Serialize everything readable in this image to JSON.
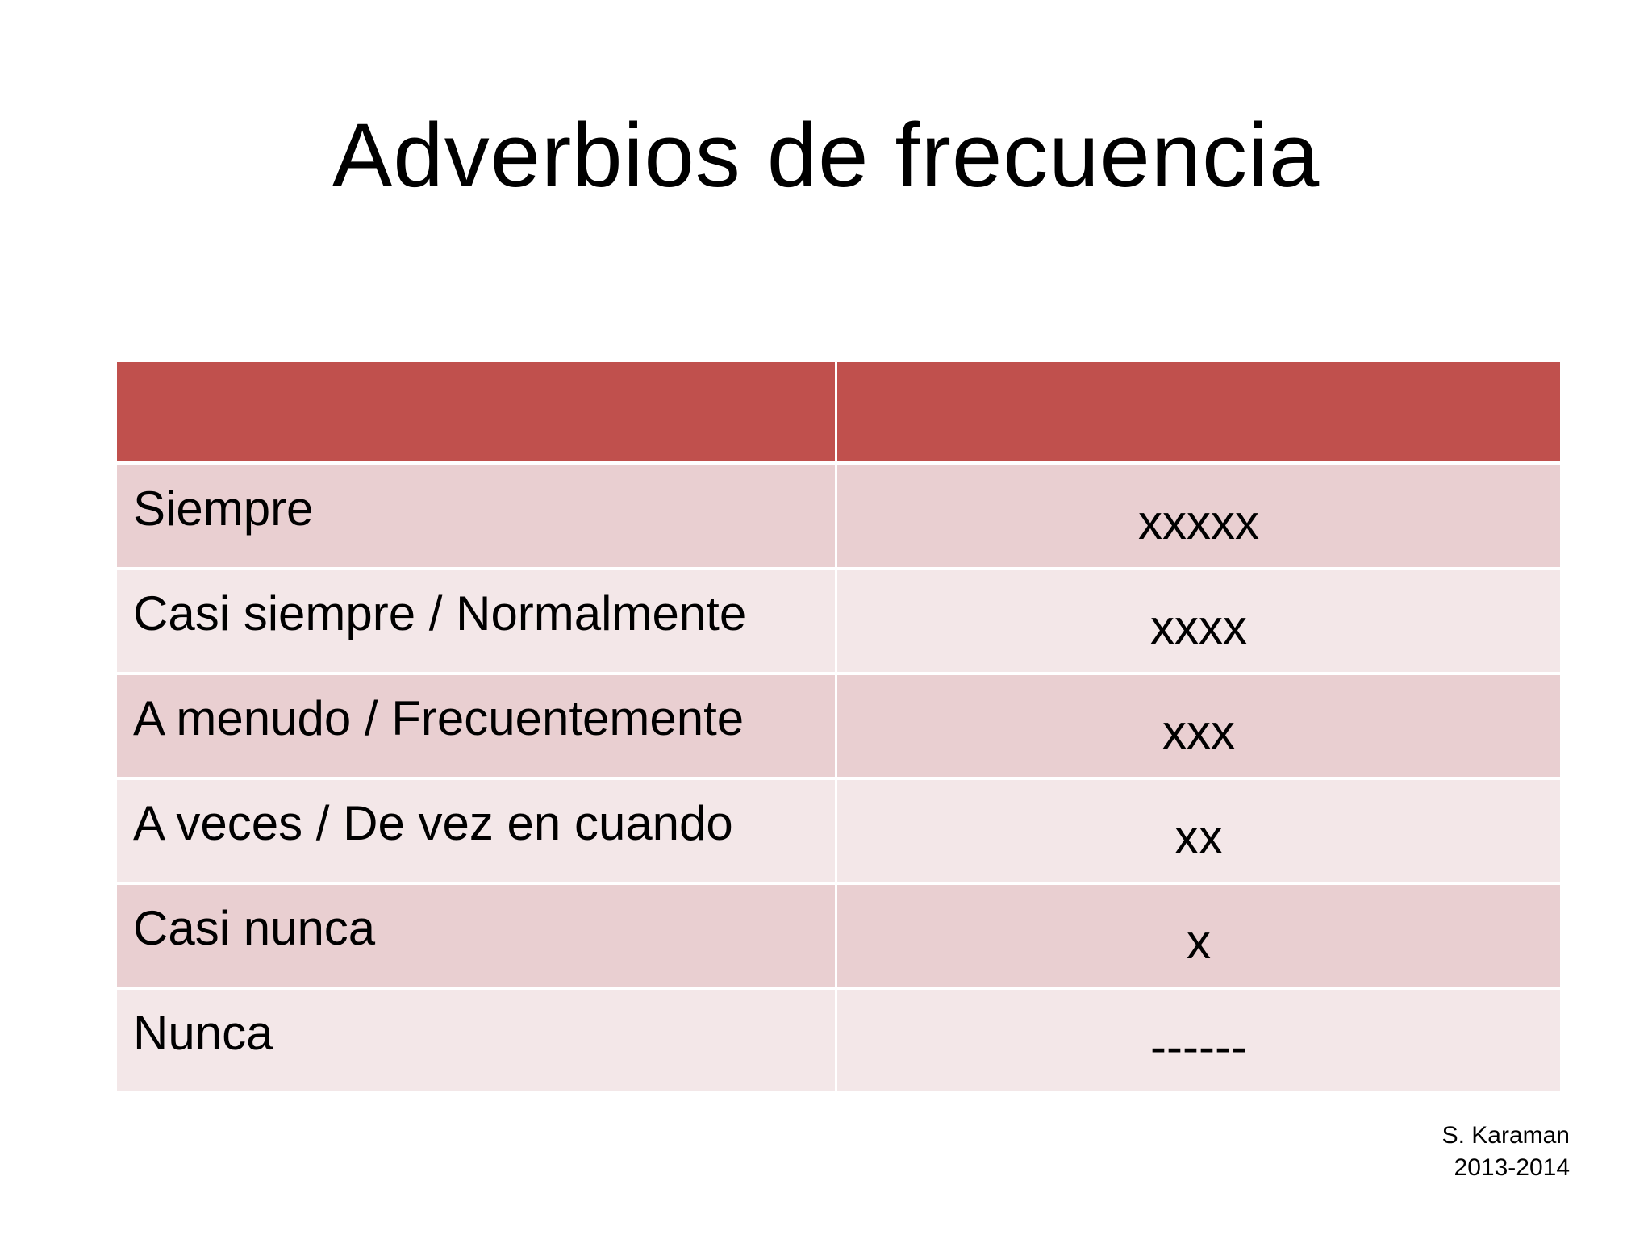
{
  "title": "Adverbios de frecuencia",
  "colors": {
    "header": "#C0504D",
    "row_odd": "#E9CFD1",
    "row_even": "#F3E7E8"
  },
  "table": {
    "header": [
      "",
      ""
    ],
    "rows": [
      {
        "adverb": "Siempre",
        "frequency": "xxxxx"
      },
      {
        "adverb": "Casi siempre / Normalmente",
        "frequency": "xxxx"
      },
      {
        "adverb": "A menudo / Frecuentemente",
        "frequency": "xxx"
      },
      {
        "adverb": "A veces / De vez en cuando",
        "frequency": "xx"
      },
      {
        "adverb": "Casi nunca",
        "frequency": "x"
      },
      {
        "adverb": "Nunca",
        "frequency": "------"
      }
    ]
  },
  "footer": {
    "author": "S. Karaman",
    "year": "2013-2014"
  }
}
